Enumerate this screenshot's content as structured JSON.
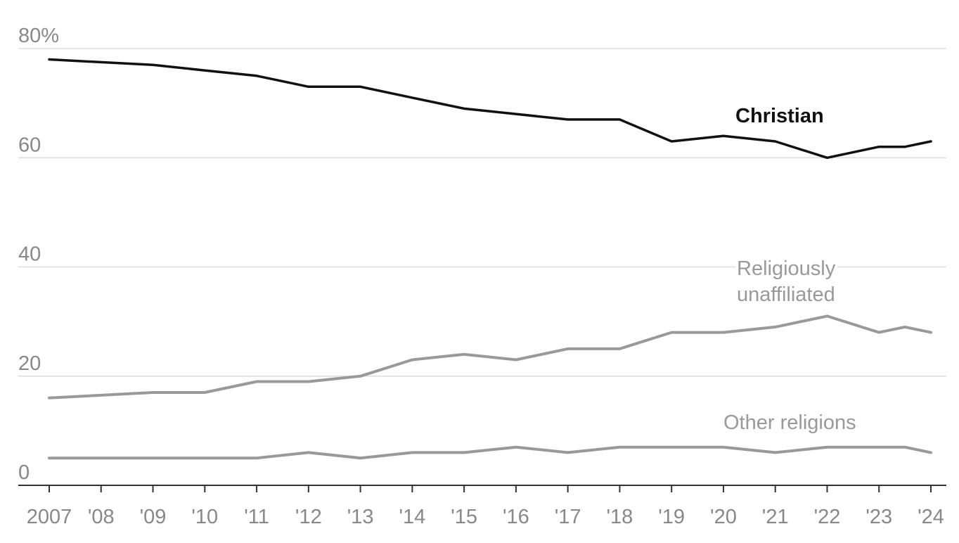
{
  "chart_data": {
    "type": "line",
    "title": "",
    "xlabel": "",
    "ylabel": "",
    "ylim": [
      0,
      80
    ],
    "grid": true,
    "y_ticks": [
      {
        "value": 0,
        "label": "0"
      },
      {
        "value": 20,
        "label": "20"
      },
      {
        "value": 40,
        "label": "40"
      },
      {
        "value": 60,
        "label": "60"
      },
      {
        "value": 80,
        "label": "80%"
      }
    ],
    "x_ticks": [
      {
        "x": 2007,
        "label": "2007"
      },
      {
        "x": 2008,
        "label": "'08"
      },
      {
        "x": 2009,
        "label": "'09"
      },
      {
        "x": 2010,
        "label": "'10"
      },
      {
        "x": 2011,
        "label": "'11"
      },
      {
        "x": 2012,
        "label": "'12"
      },
      {
        "x": 2013,
        "label": "'13"
      },
      {
        "x": 2014,
        "label": "'14"
      },
      {
        "x": 2015,
        "label": "'15"
      },
      {
        "x": 2016,
        "label": "'16"
      },
      {
        "x": 2017,
        "label": "'17"
      },
      {
        "x": 2018,
        "label": "'18"
      },
      {
        "x": 2019,
        "label": "'19"
      },
      {
        "x": 2020,
        "label": "'20"
      },
      {
        "x": 2021,
        "label": "'21"
      },
      {
        "x": 2022,
        "label": "'22"
      },
      {
        "x": 2023,
        "label": "'23"
      },
      {
        "x": 2024,
        "label": "'24"
      }
    ],
    "x_range": [
      2007,
      2024
    ],
    "x": [
      2007,
      2009,
      2010,
      2011,
      2012,
      2013,
      2014,
      2015,
      2016,
      2017,
      2018,
      2019,
      2020,
      2021,
      2022,
      2023,
      2023.5,
      2024
    ],
    "series": [
      {
        "name": "Christian",
        "label_lines": [
          "Christian"
        ],
        "color": "#111111",
        "bold": true,
        "values": [
          78,
          77,
          76,
          75,
          73,
          73,
          71,
          69,
          68,
          67,
          67,
          63,
          64,
          63,
          60,
          62,
          62,
          63
        ]
      },
      {
        "name": "Religiously unaffiliated",
        "label_lines": [
          "Religiously",
          "unaffiliated"
        ],
        "color": "#999999",
        "bold": false,
        "values": [
          16,
          17,
          17,
          19,
          19,
          20,
          23,
          24,
          23,
          25,
          25,
          28,
          28,
          29,
          31,
          28,
          29,
          28
        ]
      },
      {
        "name": "Other religions",
        "label_lines": [
          "Other religions"
        ],
        "color": "#999999",
        "bold": false,
        "values": [
          5,
          5,
          5,
          5,
          6,
          5,
          6,
          6,
          7,
          6,
          7,
          7,
          7,
          6,
          7,
          7,
          7,
          6
        ]
      }
    ]
  }
}
